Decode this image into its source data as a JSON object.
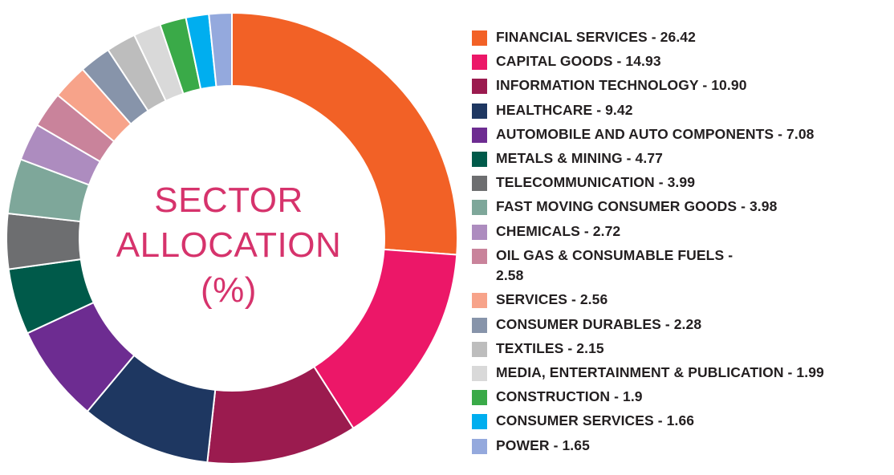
{
  "chart_data": {
    "type": "pie",
    "title": "SECTOR ALLOCATION (%)",
    "categories": [
      "FINANCIAL SERVICES",
      "CAPITAL GOODS",
      "INFORMATION TECHNOLOGY",
      "HEALTHCARE",
      "AUTOMOBILE AND AUTO COMPONENTS",
      "METALS & MINING",
      "TELECOMMUNICATION",
      "FAST MOVING CONSUMER GOODS",
      "CHEMICALS",
      "OIL GAS & CONSUMABLE FUELS",
      "SERVICES",
      "CONSUMER DURABLES",
      "TEXTILES",
      "MEDIA, ENTERTAINMENT & PUBLICATION",
      "CONSTRUCTION",
      "CONSUMER SERVICES",
      "POWER"
    ],
    "values": [
      26.42,
      14.93,
      10.9,
      9.42,
      7.08,
      4.77,
      3.99,
      3.98,
      2.72,
      2.58,
      2.56,
      2.28,
      2.15,
      1.99,
      1.9,
      1.66,
      1.65
    ],
    "colors": [
      "#f26126",
      "#ec1768",
      "#9b1b4f",
      "#1e3761",
      "#6d2c91",
      "#005a4a",
      "#6d6e70",
      "#7ea79a",
      "#ad8cbf",
      "#c9839b",
      "#f7a38a",
      "#8794aa",
      "#bdbdbd",
      "#d9d9d9",
      "#3aaa48",
      "#00aeef",
      "#94a9dd"
    ],
    "legend_position": "right",
    "donut": true
  },
  "center_title": {
    "line1": "SECTOR",
    "line2": "ALLOCATION",
    "line3": "(%)"
  },
  "legend": [
    {
      "label": "FINANCIAL SERVICES - 26.42",
      "color": "#f26126"
    },
    {
      "label": "CAPITAL GOODS - 14.93",
      "color": "#ec1768"
    },
    {
      "label": "INFORMATION TECHNOLOGY - 10.90",
      "color": "#9b1b4f"
    },
    {
      "label": "HEALTHCARE - 9.42",
      "color": "#1e3761"
    },
    {
      "label": "AUTOMOBILE AND AUTO COMPONENTS - 7.08",
      "color": "#6d2c91"
    },
    {
      "label": "METALS & MINING - 4.77",
      "color": "#005a4a"
    },
    {
      "label": "TELECOMMUNICATION - 3.99",
      "color": "#6d6e70"
    },
    {
      "label": "FAST MOVING CONSUMER GOODS - 3.98",
      "color": "#7ea79a"
    },
    {
      "label": "CHEMICALS - 2.72",
      "color": "#ad8cbf"
    },
    {
      "label": "OIL GAS & CONSUMABLE FUELS - 2.58",
      "color": "#c9839b"
    },
    {
      "label": "SERVICES - 2.56",
      "color": "#f7a38a"
    },
    {
      "label": "CONSUMER DURABLES - 2.28",
      "color": "#8794aa"
    },
    {
      "label": "TEXTILES - 2.15",
      "color": "#bdbdbd"
    },
    {
      "label": "MEDIA, ENTERTAINMENT & PUBLICATION - 1.99",
      "color": "#d9d9d9"
    },
    {
      "label": "CONSTRUCTION  - 1.9",
      "color": "#3aaa48"
    },
    {
      "label": "CONSUMER SERVICES  - 1.66",
      "color": "#00aeef"
    },
    {
      "label": "POWER  - 1.65",
      "color": "#94a9dd"
    }
  ]
}
